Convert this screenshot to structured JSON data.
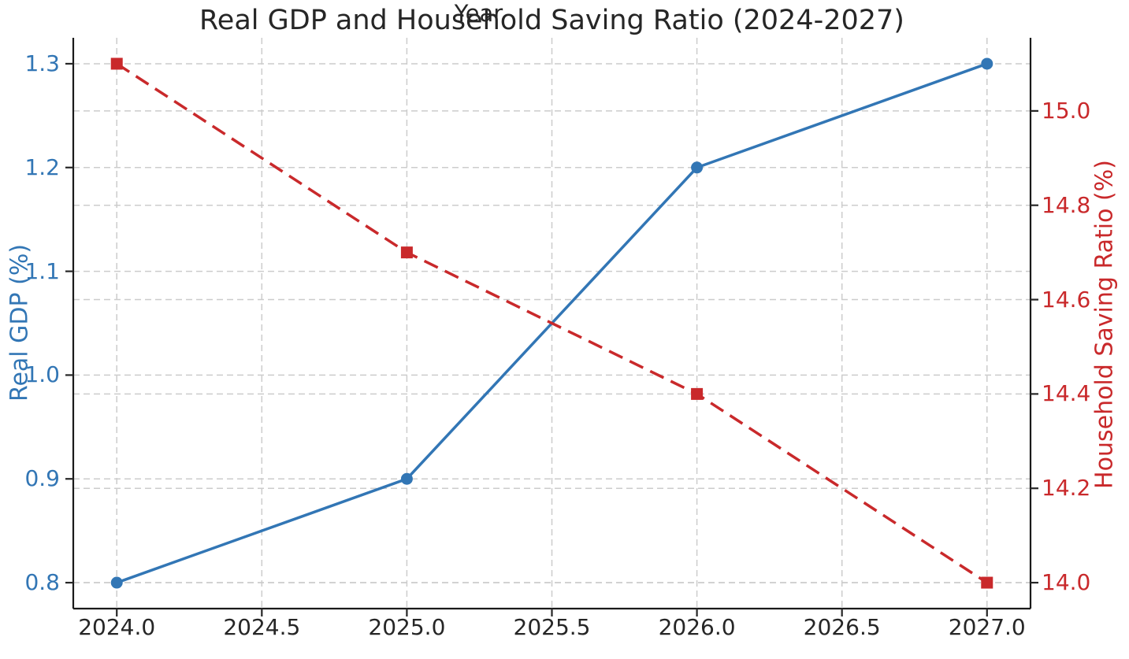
{
  "chart_data": {
    "type": "line",
    "title": "Real GDP and Household Saving Ratio (2024-2027)",
    "xlabel": "Year",
    "x": [
      2024,
      2025,
      2026,
      2027
    ],
    "series": [
      {
        "name": "Real GDP (%)",
        "axis": "left",
        "values": [
          0.8,
          0.9,
          1.2,
          1.3
        ],
        "color": "#3276b5",
        "line_style": "solid",
        "marker": "circle"
      },
      {
        "name": "Household Saving Ratio (%)",
        "axis": "right",
        "values": [
          15.1,
          14.7,
          14.4,
          14.0
        ],
        "color": "#c9292b",
        "line_style": "dashed",
        "marker": "square"
      }
    ],
    "x_axis": {
      "label": "Year",
      "tick_labels": [
        "2024.0",
        "2024.5",
        "2025.0",
        "2025.5",
        "2026.0",
        "2026.5",
        "2027.0"
      ],
      "lim": [
        2023.85,
        2027.15
      ]
    },
    "left_axis": {
      "label": "Real GDP (%)",
      "color": "#3276b5",
      "tick_labels": [
        "0.8",
        "0.9",
        "1.0",
        "1.1",
        "1.2",
        "1.3"
      ],
      "lim": [
        0.775,
        1.325
      ]
    },
    "right_axis": {
      "label": "Household Saving Ratio (%)",
      "color": "#c9292b",
      "tick_labels": [
        "14.0",
        "14.2",
        "14.4",
        "14.6",
        "14.8",
        "15.0"
      ],
      "lim": [
        13.945,
        15.155
      ]
    },
    "grid": true,
    "legend": "none",
    "colors": {
      "grid": "#cccccc",
      "spine": "#1a1a1a",
      "tick_mark": "#262626",
      "text": "#262626",
      "background": "#ffffff"
    }
  }
}
